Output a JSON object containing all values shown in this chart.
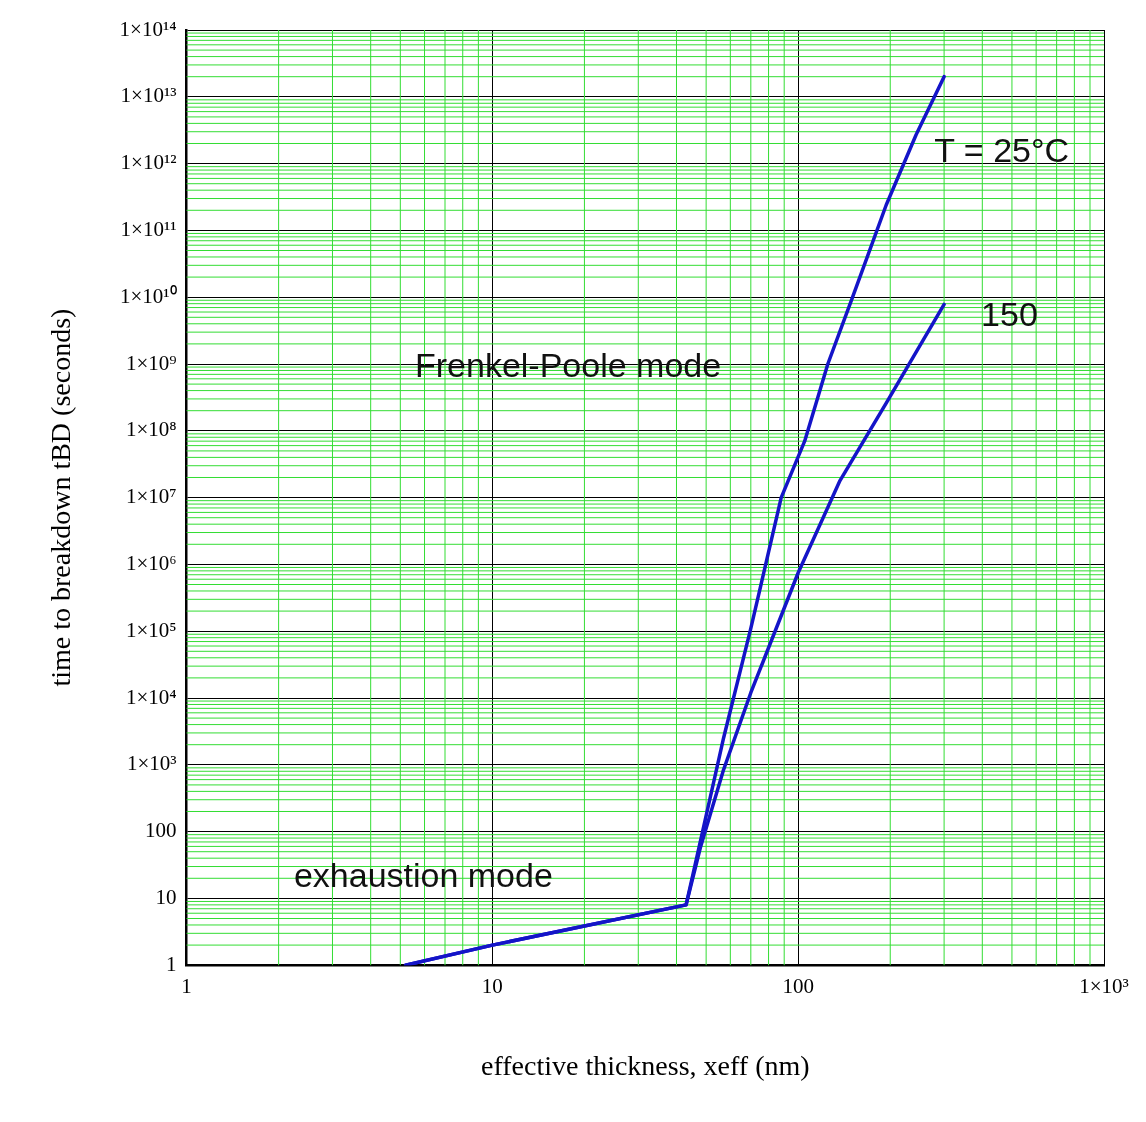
{
  "chart_data": {
    "type": "line",
    "xlabel": "effective thickness, xeff (nm)",
    "ylabel": "time to breakdown tBD (seconds)",
    "log": "xy",
    "grid": true,
    "legend": false,
    "marker": "none",
    "line_style": "solid",
    "xlim": [
      1,
      1000
    ],
    "xticks": [
      1,
      10,
      100,
      {
        "value": 1000,
        "label": "1×10³"
      }
    ],
    "ylim": [
      1,
      100000000000000.0
    ],
    "yticks": [
      1,
      10,
      100,
      {
        "value": 1000,
        "label": "1×10³"
      },
      {
        "value": 10000.0,
        "label": "1×10⁴"
      },
      {
        "value": 100000.0,
        "label": "1×10⁵"
      },
      {
        "value": 1000000.0,
        "label": "1×10⁶"
      },
      {
        "value": 10000000.0,
        "label": "1×10⁷"
      },
      {
        "value": 100000000.0,
        "label": "1×10⁸"
      },
      {
        "value": 1000000000.0,
        "label": "1×10⁹"
      },
      {
        "value": 10000000000.0,
        "label": "1×10¹⁰"
      },
      {
        "value": 100000000000.0,
        "label": "1×10¹¹"
      },
      {
        "value": 1000000000000.0,
        "label": "1×10¹²"
      },
      {
        "value": 10000000000000.0,
        "label": "1×10¹³"
      },
      {
        "value": 100000000000000.0,
        "label": "1×10¹⁴"
      }
    ],
    "series": [
      {
        "color": "#1414c8",
        "x": [
          5.2,
          10,
          43,
          57,
          70,
          88,
          105,
          125,
          150,
          194,
          243,
          300
        ],
        "values": [
          1,
          2,
          8,
          2500,
          110000,
          10000000.0,
          70000000.0,
          1000000000.0,
          9500000000.0,
          240000000000.0,
          2700000000000.0,
          20000000000000.0
        ]
      },
      {
        "color": "#1414c8",
        "x": [
          5.2,
          10,
          43,
          48,
          57,
          70,
          100,
          137,
          194,
          300
        ],
        "values": [
          1,
          2,
          8,
          60,
          840,
          12000,
          750000.0,
          18000000.0,
          260000000.0,
          7800000000.0
        ]
      }
    ],
    "annotations": [
      "T = 25°C",
      "150",
      "Frenkel-Poole mode",
      "exhaustion mode"
    ]
  }
}
